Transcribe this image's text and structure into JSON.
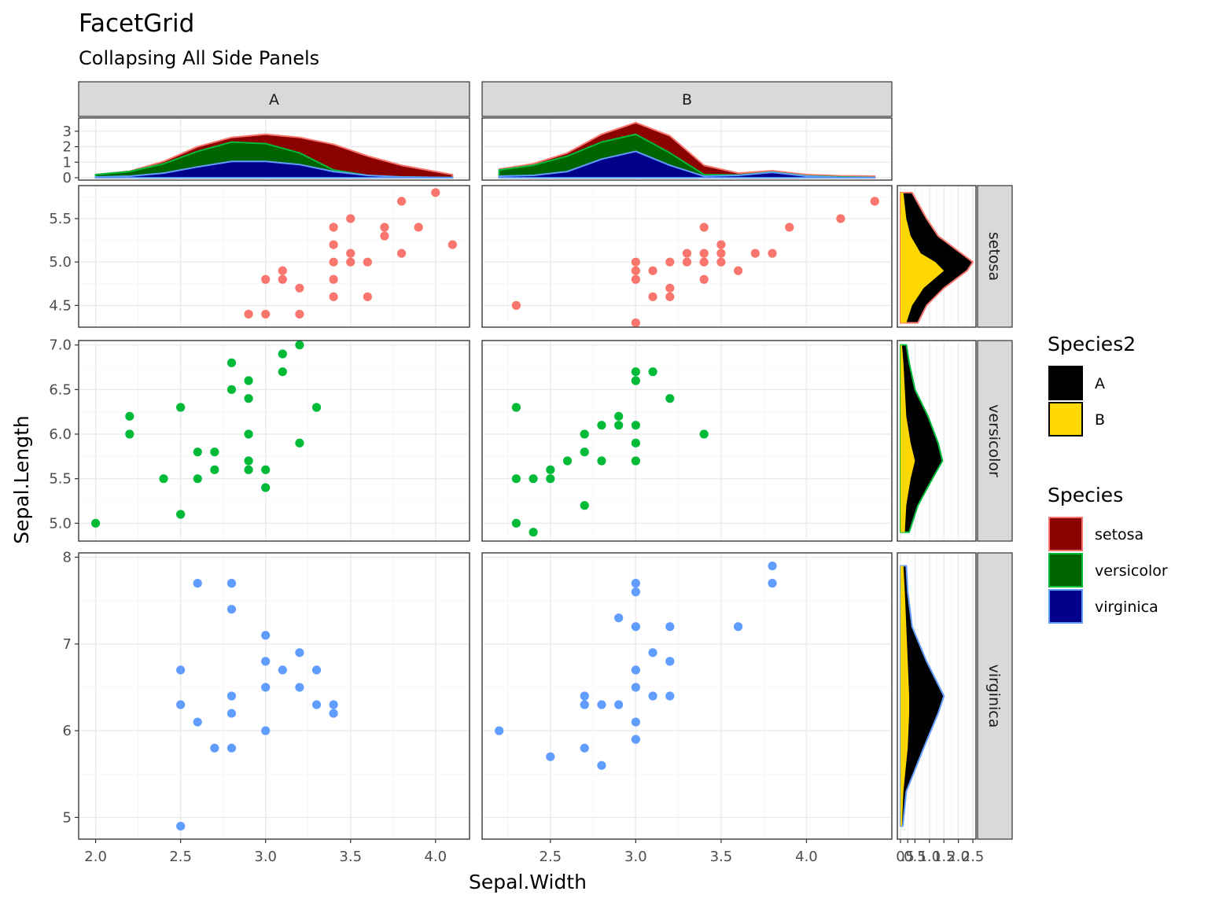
{
  "chart_data": {
    "type": "scatter",
    "title": "FacetGrid",
    "subtitle": "Collapsing All Side Panels",
    "xlabel": "Sepal.Width",
    "ylabel": "Sepal.Length",
    "facet_columns": [
      "A",
      "B"
    ],
    "facet_rows": [
      "setosa",
      "versicolor",
      "virginica"
    ],
    "xlim": {
      "A": [
        1.9,
        4.2
      ],
      "B": [
        2.1,
        4.5
      ]
    },
    "x_ticks": {
      "A": [
        "2.0",
        "2.5",
        "3.0",
        "3.5",
        "4.0"
      ],
      "B": [
        "2.5",
        "3.0",
        "3.5",
        "4.0"
      ]
    },
    "ylim": {
      "setosa": [
        4.25,
        5.88
      ],
      "versicolor": [
        4.8,
        7.05
      ],
      "virginica": [
        4.75,
        8.05
      ]
    },
    "y_ticks": {
      "setosa": [
        "4.5",
        "5.0",
        "5.5"
      ],
      "versicolor": [
        "5.0",
        "5.5",
        "6.0",
        "6.5",
        "7.0"
      ],
      "virginica": [
        "5",
        "6",
        "7",
        "8"
      ]
    },
    "colors": {
      "setosa": "#F8766D",
      "versicolor": "#00BA38",
      "virginica": "#619CFF"
    },
    "scatter": {
      "A": {
        "setosa": [
          [
            4.1,
            5.2
          ],
          [
            4.0,
            5.8
          ],
          [
            3.9,
            5.4
          ],
          [
            3.8,
            5.7
          ],
          [
            3.8,
            5.1
          ],
          [
            3.7,
            5.4
          ],
          [
            3.7,
            5.3
          ],
          [
            3.6,
            4.6
          ],
          [
            3.6,
            5.0
          ],
          [
            3.5,
            5.5
          ],
          [
            3.5,
            5.0
          ],
          [
            3.5,
            5.1
          ],
          [
            3.4,
            5.4
          ],
          [
            3.4,
            5.2
          ],
          [
            3.4,
            5.0
          ],
          [
            3.4,
            4.8
          ],
          [
            3.4,
            4.6
          ],
          [
            3.2,
            4.7
          ],
          [
            3.2,
            4.4
          ],
          [
            3.1,
            4.9
          ],
          [
            3.1,
            4.8
          ],
          [
            3.0,
            4.8
          ],
          [
            3.0,
            4.4
          ],
          [
            2.9,
            4.4
          ]
        ],
        "versicolor": [
          [
            2.0,
            5.0
          ],
          [
            2.2,
            6.2
          ],
          [
            2.2,
            6.0
          ],
          [
            2.4,
            5.5
          ],
          [
            2.5,
            6.3
          ],
          [
            2.5,
            5.1
          ],
          [
            2.6,
            5.8
          ],
          [
            2.6,
            5.5
          ],
          [
            2.7,
            5.8
          ],
          [
            2.7,
            5.6
          ],
          [
            2.8,
            6.8
          ],
          [
            2.8,
            6.5
          ],
          [
            2.9,
            6.6
          ],
          [
            2.9,
            6.4
          ],
          [
            2.9,
            6.0
          ],
          [
            2.9,
            5.7
          ],
          [
            2.9,
            5.6
          ],
          [
            3.0,
            5.6
          ],
          [
            3.0,
            5.4
          ],
          [
            3.1,
            6.9
          ],
          [
            3.1,
            6.7
          ],
          [
            3.2,
            7.0
          ],
          [
            3.2,
            5.9
          ],
          [
            3.3,
            6.3
          ]
        ],
        "virginica": [
          [
            2.5,
            6.7
          ],
          [
            2.5,
            6.3
          ],
          [
            2.5,
            4.9
          ],
          [
            2.6,
            7.7
          ],
          [
            2.6,
            6.1
          ],
          [
            2.7,
            5.8
          ],
          [
            2.8,
            7.7
          ],
          [
            2.8,
            7.4
          ],
          [
            2.8,
            6.4
          ],
          [
            2.8,
            6.2
          ],
          [
            2.8,
            5.8
          ],
          [
            3.0,
            7.1
          ],
          [
            3.0,
            6.8
          ],
          [
            3.0,
            6.5
          ],
          [
            3.0,
            6.0
          ],
          [
            3.1,
            6.7
          ],
          [
            3.2,
            6.9
          ],
          [
            3.2,
            6.5
          ],
          [
            3.3,
            6.7
          ],
          [
            3.3,
            6.3
          ],
          [
            3.4,
            6.3
          ],
          [
            3.4,
            6.2
          ]
        ]
      },
      "B": {
        "setosa": [
          [
            4.4,
            5.7
          ],
          [
            4.2,
            5.5
          ],
          [
            3.9,
            5.4
          ],
          [
            3.8,
            5.1
          ],
          [
            3.7,
            5.1
          ],
          [
            3.6,
            4.9
          ],
          [
            3.5,
            5.2
          ],
          [
            3.5,
            5.1
          ],
          [
            3.5,
            5.0
          ],
          [
            3.4,
            5.4
          ],
          [
            3.4,
            5.1
          ],
          [
            3.4,
            5.0
          ],
          [
            3.4,
            4.8
          ],
          [
            3.3,
            5.1
          ],
          [
            3.3,
            5.0
          ],
          [
            3.2,
            5.0
          ],
          [
            3.2,
            4.7
          ],
          [
            3.2,
            4.6
          ],
          [
            3.1,
            4.9
          ],
          [
            3.1,
            4.6
          ],
          [
            3.0,
            5.0
          ],
          [
            3.0,
            4.9
          ],
          [
            3.0,
            4.8
          ],
          [
            3.0,
            4.3
          ],
          [
            2.3,
            4.5
          ]
        ],
        "versicolor": [
          [
            2.3,
            6.3
          ],
          [
            2.3,
            5.5
          ],
          [
            2.3,
            5.0
          ],
          [
            2.4,
            5.5
          ],
          [
            2.4,
            4.9
          ],
          [
            2.5,
            5.6
          ],
          [
            2.5,
            5.5
          ],
          [
            2.6,
            5.7
          ],
          [
            2.7,
            6.0
          ],
          [
            2.7,
            5.8
          ],
          [
            2.7,
            5.2
          ],
          [
            2.8,
            6.1
          ],
          [
            2.8,
            5.7
          ],
          [
            2.9,
            6.2
          ],
          [
            2.9,
            6.1
          ],
          [
            3.0,
            6.7
          ],
          [
            3.0,
            6.6
          ],
          [
            3.0,
            6.1
          ],
          [
            3.0,
            5.9
          ],
          [
            3.0,
            5.7
          ],
          [
            3.1,
            6.7
          ],
          [
            3.2,
            6.4
          ],
          [
            3.4,
            6.0
          ]
        ],
        "virginica": [
          [
            2.2,
            6.0
          ],
          [
            2.5,
            5.7
          ],
          [
            2.7,
            6.4
          ],
          [
            2.7,
            6.3
          ],
          [
            2.7,
            5.8
          ],
          [
            2.8,
            6.3
          ],
          [
            2.8,
            5.6
          ],
          [
            2.9,
            7.3
          ],
          [
            2.9,
            6.3
          ],
          [
            3.0,
            7.7
          ],
          [
            3.0,
            7.6
          ],
          [
            3.0,
            7.2
          ],
          [
            3.0,
            6.7
          ],
          [
            3.0,
            6.5
          ],
          [
            3.0,
            6.1
          ],
          [
            3.0,
            5.9
          ],
          [
            3.1,
            6.9
          ],
          [
            3.1,
            6.4
          ],
          [
            3.2,
            7.2
          ],
          [
            3.2,
            6.8
          ],
          [
            3.2,
            6.4
          ],
          [
            3.6,
            7.2
          ],
          [
            3.8,
            7.9
          ],
          [
            3.8,
            7.7
          ]
        ]
      }
    },
    "top_density": {
      "type": "area",
      "stacked": true,
      "ylim": [
        0,
        3.7
      ],
      "y_ticks": [
        "0",
        "1",
        "2",
        "3"
      ],
      "fill": {
        "setosa": "#8B0000",
        "versicolor": "#006400",
        "virginica": "#00008B"
      },
      "A": {
        "x": [
          2.0,
          2.2,
          2.4,
          2.6,
          2.8,
          3.0,
          3.2,
          3.4,
          3.6,
          3.8,
          4.0,
          4.1
        ],
        "virginica": [
          0.05,
          0.1,
          0.3,
          0.7,
          1.05,
          1.05,
          0.85,
          0.4,
          0.15,
          0.05,
          0.02,
          0.01
        ],
        "versicolor": [
          0.2,
          0.4,
          0.9,
          1.7,
          2.3,
          2.2,
          1.6,
          0.5,
          0.15,
          0.05,
          0.02,
          0.01
        ],
        "setosa": [
          0.2,
          0.42,
          1.05,
          2.0,
          2.6,
          2.8,
          2.6,
          2.15,
          1.4,
          0.8,
          0.4,
          0.2
        ]
      },
      "B": {
        "x": [
          2.2,
          2.4,
          2.6,
          2.8,
          3.0,
          3.2,
          3.4,
          3.6,
          3.8,
          4.0,
          4.2,
          4.4
        ],
        "virginica": [
          0.1,
          0.15,
          0.4,
          1.2,
          1.7,
          0.8,
          0.1,
          0.15,
          0.35,
          0.1,
          0.02,
          0.01
        ],
        "versicolor": [
          0.5,
          0.8,
          1.4,
          2.3,
          2.8,
          1.6,
          0.2,
          0.18,
          0.37,
          0.12,
          0.05,
          0.02
        ],
        "setosa": [
          0.55,
          0.9,
          1.6,
          2.8,
          3.55,
          2.7,
          0.8,
          0.3,
          0.45,
          0.2,
          0.12,
          0.1
        ]
      }
    },
    "right_density": {
      "type": "area",
      "stacked": true,
      "x_ticks": [
        "0",
        ".5",
        "0.5",
        "1.0",
        "1.5",
        "2.0",
        "2.5"
      ],
      "xlim": [
        0,
        2.5
      ],
      "fill": {
        "A": "#000000",
        "B": "#FFD700"
      },
      "setosa": {
        "y": [
          4.3,
          4.5,
          4.7,
          4.9,
          5.0,
          5.1,
          5.3,
          5.5,
          5.8
        ],
        "B": [
          0.2,
          0.4,
          0.8,
          1.5,
          1.2,
          0.7,
          0.35,
          0.2,
          0.1
        ],
        "total": [
          0.6,
          0.9,
          1.5,
          2.3,
          2.5,
          2.1,
          1.3,
          0.9,
          0.4
        ]
      },
      "versicolor": {
        "y": [
          4.9,
          5.2,
          5.5,
          5.7,
          5.9,
          6.2,
          6.5,
          6.8,
          7.0
        ],
        "B": [
          0.15,
          0.2,
          0.35,
          0.5,
          0.35,
          0.2,
          0.15,
          0.1,
          0.05
        ],
        "total": [
          0.3,
          0.6,
          1.1,
          1.45,
          1.3,
          0.95,
          0.5,
          0.3,
          0.2
        ]
      },
      "virginica": {
        "y": [
          4.9,
          5.3,
          5.8,
          6.2,
          6.4,
          6.8,
          7.2,
          7.6,
          7.9
        ],
        "B": [
          0.05,
          0.1,
          0.25,
          0.3,
          0.3,
          0.25,
          0.2,
          0.15,
          0.1
        ],
        "total": [
          0.08,
          0.2,
          0.8,
          1.3,
          1.5,
          0.9,
          0.4,
          0.25,
          0.2
        ]
      }
    },
    "legends": [
      {
        "title": "Species2",
        "entries": [
          {
            "label": "A",
            "color": "#000000",
            "border": "#000000"
          },
          {
            "label": "B",
            "color": "#FFD700",
            "border": "#000000"
          }
        ]
      },
      {
        "title": "Species",
        "entries": [
          {
            "label": "setosa",
            "color": "#8B0000",
            "border": "#F8766D"
          },
          {
            "label": "versicolor",
            "color": "#006400",
            "border": "#00BA38"
          },
          {
            "label": "virginica",
            "color": "#00008B",
            "border": "#619CFF"
          }
        ]
      }
    ]
  }
}
